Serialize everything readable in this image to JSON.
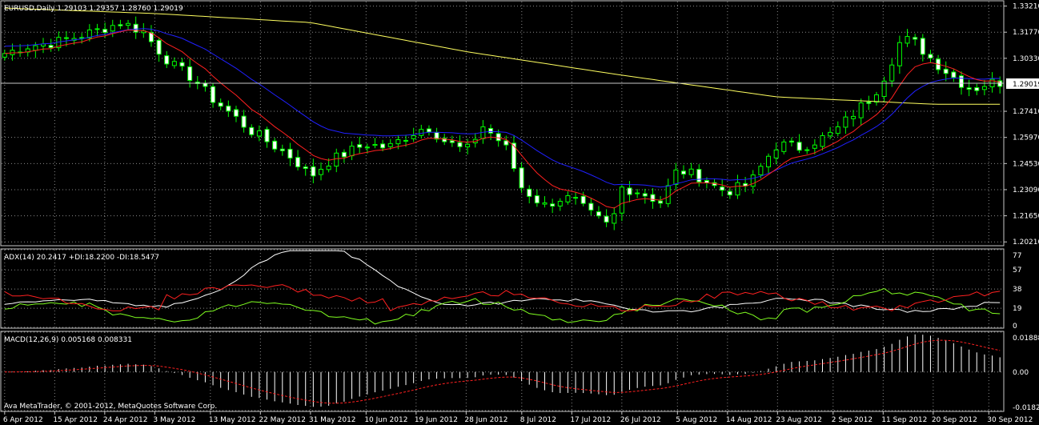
{
  "window": {
    "header": "EURUSD,Daily  1.29103 1.29357 1.28760 1.29019",
    "copyright": "Ava MetaTrader, © 2001-2012, MetaQuotes Software Corp."
  },
  "colors": {
    "background": "#000000",
    "grid": "#8a8a8a",
    "axis": "#c8c8c8",
    "text": "#ffffff",
    "bull": "#00ff00",
    "bear": "#ffffff",
    "bar_outline": "#00ff00",
    "ma_fast": "#ff2020",
    "ma_mid": "#2020ff",
    "ma_slow": "#ffff60",
    "adx": "#ffffff",
    "di_plus": "#80ff20",
    "di_minus": "#ff2020",
    "macd_hist": "#ffffff",
    "macd_signal": "#ff2020"
  },
  "price_axis": {
    "ticks": [
      "1.33210",
      "1.31770",
      "1.30330",
      "1.27410",
      "1.25970",
      "1.24530",
      "1.23090",
      "1.21650",
      "1.20210"
    ],
    "current_price": "1.29019"
  },
  "date_axis": [
    "6 Apr 2012",
    "15 Apr 2012",
    "24 Apr 2012",
    "3 May 2012",
    "13 May 2012",
    "22 May 2012",
    "31 May 2012",
    "10 Jun 2012",
    "19 Jun 2012",
    "28 Jun 2012",
    "8 Jul 2012",
    "17 Jul 2012",
    "26 Jul 2012",
    "5 Aug 2012",
    "14 Aug 2012",
    "23 Aug 2012",
    "2 Sep 2012",
    "11 Sep 2012",
    "20 Sep 2012",
    "30 Sep 2012"
  ],
  "adx_pane": {
    "label": "ADX(14) 20.2417 +DI:18.2200 -DI:18.5477",
    "ticks": [
      "77",
      "57",
      "38",
      "19",
      "0"
    ]
  },
  "macd_pane": {
    "label": "MACD(12,26,9) 0.005168 0.008331",
    "ticks": [
      "0.01888",
      "0.00",
      "-0.01829"
    ]
  },
  "chart_data": [
    {
      "type": "candlestick",
      "symbol": "EURUSD",
      "timeframe": "Daily",
      "ylim": [
        1.2,
        1.335
      ],
      "ohlc_anchors": [
        [
          "6 Apr 2012",
          1.306
        ],
        [
          "10 Apr 2012",
          1.31
        ],
        [
          "15 Apr 2012",
          1.312
        ],
        [
          "20 Apr 2012",
          1.316
        ],
        [
          "24 Apr 2012",
          1.32
        ],
        [
          "27 Apr 2012",
          1.323
        ],
        [
          "1 May 2012",
          1.318
        ],
        [
          "3 May 2012",
          1.31
        ],
        [
          "6 May 2012",
          1.3
        ],
        [
          "10 May 2012",
          1.292
        ],
        [
          "13 May 2012",
          1.282
        ],
        [
          "17 May 2012",
          1.272
        ],
        [
          "20 May 2012",
          1.264
        ],
        [
          "24 May 2012",
          1.256
        ],
        [
          "28 May 2012",
          1.248
        ],
        [
          "31 May 2012",
          1.238
        ],
        [
          "3 Jun 2012",
          1.246
        ],
        [
          "7 Jun 2012",
          1.252
        ],
        [
          "10 Jun 2012",
          1.256
        ],
        [
          "14 Jun 2012",
          1.254
        ],
        [
          "17 Jun 2012",
          1.26
        ],
        [
          "21 Jun 2012",
          1.266
        ],
        [
          "24 Jun 2012",
          1.258
        ],
        [
          "28 Jun 2012",
          1.252
        ],
        [
          "1 Jul 2012",
          1.266
        ],
        [
          "5 Jul 2012",
          1.255
        ],
        [
          "8 Jul 2012",
          1.232
        ],
        [
          "12 Jul 2012",
          1.222
        ],
        [
          "15 Jul 2012",
          1.226
        ],
        [
          "17 Jul 2012",
          1.226
        ],
        [
          "20 Jul 2012",
          1.218
        ],
        [
          "24 Jul 2012",
          1.21
        ],
        [
          "26 Jul 2012",
          1.232
        ],
        [
          "29 Jul 2012",
          1.23
        ],
        [
          "2 Aug 2012",
          1.224
        ],
        [
          "5 Aug 2012",
          1.242
        ],
        [
          "9 Aug 2012",
          1.238
        ],
        [
          "12 Aug 2012",
          1.232
        ],
        [
          "14 Aug 2012",
          1.23
        ],
        [
          "18 Aug 2012",
          1.234
        ],
        [
          "21 Aug 2012",
          1.248
        ],
        [
          "23 Aug 2012",
          1.256
        ],
        [
          "27 Aug 2012",
          1.254
        ],
        [
          "30 Aug 2012",
          1.258
        ],
        [
          "2 Sep 2012",
          1.262
        ],
        [
          "6 Sep 2012",
          1.274
        ],
        [
          "9 Sep 2012",
          1.282
        ],
        [
          "11 Sep 2012",
          1.292
        ],
        [
          "14 Sep 2012",
          1.312
        ],
        [
          "16 Sep 2012",
          1.314
        ],
        [
          "20 Sep 2012",
          1.302
        ],
        [
          "24 Sep 2012",
          1.292
        ],
        [
          "27 Sep 2012",
          1.286
        ],
        [
          "30 Sep 2012",
          1.29
        ],
        [
          "2 Oct 2012",
          1.29
        ]
      ],
      "sma_slow_anchors": [
        [
          "6 Apr 2012",
          1.331
        ],
        [
          "3 May 2012",
          1.328
        ],
        [
          "31 May 2012",
          1.323
        ],
        [
          "28 Jun 2012",
          1.307
        ],
        [
          "26 Jul 2012",
          1.294
        ],
        [
          "23 Aug 2012",
          1.282
        ],
        [
          "20 Sep 2012",
          1.278
        ],
        [
          "2 Oct 2012",
          1.278
        ]
      ]
    },
    {
      "type": "line",
      "title": "ADX(14)",
      "ylim": [
        0,
        77
      ],
      "series": [
        {
          "name": "ADX",
          "last": 20.2417
        },
        {
          "name": "+DI",
          "last": 18.22
        },
        {
          "name": "-DI",
          "last": 18.5477
        }
      ]
    },
    {
      "type": "bar",
      "title": "MACD(12,26,9)",
      "ylim": [
        -0.01829,
        0.01888
      ],
      "series": [
        {
          "name": "MACD",
          "last": 0.005168
        },
        {
          "name": "Signal",
          "last": 0.008331
        }
      ]
    }
  ]
}
